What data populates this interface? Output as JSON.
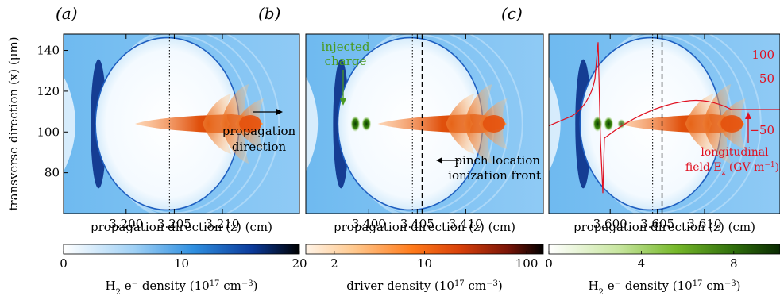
{
  "chart_data": [
    {
      "type": "heatmap",
      "panel_label": "(a)",
      "xlabel": "propagation direction (z) (cm)",
      "ylabel": "transverse direction (x) (μm)",
      "xlim": [
        3.1935,
        3.218
      ],
      "ylim": [
        60,
        148
      ],
      "x_ticks": [
        "3.200",
        "3.205",
        "3.210"
      ],
      "y_ticks": [
        "80",
        "100",
        "120",
        "140"
      ],
      "dotted_line_z": 3.2045,
      "annotations": [
        "propagation",
        "direction"
      ]
    },
    {
      "type": "heatmap",
      "panel_label": "(b)",
      "xlabel": "propagation direction (z) (cm)",
      "xlim": [
        3.3935,
        3.418
      ],
      "ylim": [
        60,
        148
      ],
      "x_ticks": [
        "3.400",
        "3.405",
        "3.410"
      ],
      "dotted_line_z": 3.4045,
      "dashed_line_z": 3.4055,
      "annotations": [
        "injected",
        "charge",
        "pinch location",
        "ionization front"
      ]
    },
    {
      "type": "heatmap",
      "panel_label": "(c)",
      "xlabel": "propagation direction (z) (cm)",
      "xlim": [
        3.5935,
        3.618
      ],
      "ylim": [
        60,
        148
      ],
      "x_ticks": [
        "3.600",
        "3.605",
        "3.610"
      ],
      "dotted_line_z": 3.6045,
      "dashed_line_z": 3.6055,
      "overlay": {
        "name": "longitudinal field Ez",
        "right_ticks": [
          "100",
          "50",
          "−50"
        ],
        "label_lines": [
          "longitudinal",
          "field E",
          "z",
          " (GV m",
          "−1",
          ")"
        ]
      }
    }
  ],
  "colorbars": [
    {
      "title_parts": [
        "H",
        "2",
        " e",
        "−",
        " density (10",
        "17",
        " cm",
        "−3",
        ")"
      ],
      "ticks": [
        "0",
        "10",
        "20"
      ],
      "scale": "linear",
      "range": [
        0,
        20
      ],
      "colors": [
        "#ffffff",
        "#9fd0f5",
        "#2f8fe0",
        "#0b3a9a",
        "#000000"
      ]
    },
    {
      "title_parts": [
        "driver density (10",
        "17",
        " cm",
        "−3",
        ")"
      ],
      "ticks": [
        "2",
        "10",
        "100"
      ],
      "scale": "log",
      "colors": [
        "#fff3e6",
        "#ffc98f",
        "#ff7a1a",
        "#d8400a",
        "#7a1508",
        "#000000"
      ]
    },
    {
      "title_parts": [
        "H",
        "2",
        " e",
        "−",
        " density (10",
        "17",
        " cm",
        "−3",
        ")"
      ],
      "ticks": [
        "0",
        "4",
        "8"
      ],
      "scale": "linear",
      "range": [
        0,
        10
      ],
      "colors": [
        "#ffffff",
        "#c8e6a0",
        "#76b82a",
        "#2f6e0c",
        "#0a2a02"
      ]
    }
  ],
  "colors": {
    "accent_green": "#4a9a20",
    "field_red": "#e01020"
  }
}
